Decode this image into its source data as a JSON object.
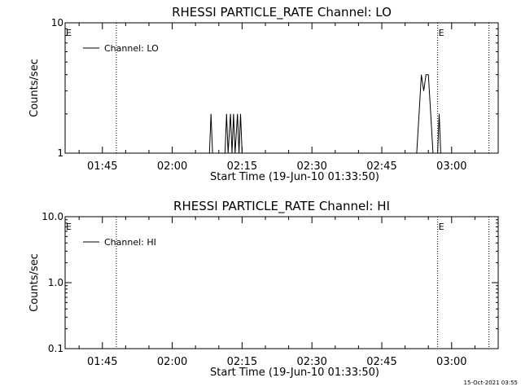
{
  "footer": {
    "timestamp": "15-Oct-2021 03:55"
  },
  "chart_data": [
    {
      "type": "line",
      "title": "RHESSI PARTICLE_RATE Channel: LO",
      "xlabel": "Start Time (19-Jun-10 01:33:50)",
      "ylabel": "Counts/sec",
      "yscale": "log",
      "ylim": [
        1,
        10
      ],
      "yticks": [
        1,
        10
      ],
      "ytick_labels": [
        "1",
        "10"
      ],
      "xlim": [
        "01:37",
        "03:10"
      ],
      "xticks": [
        "01:45",
        "02:00",
        "02:15",
        "02:30",
        "02:45",
        "03:00"
      ],
      "grid": false,
      "legend_position": "top-left",
      "legend_label": "Channel: LO",
      "markers": [
        {
          "time": "01:37",
          "label": "E"
        },
        {
          "time": "01:48"
        },
        {
          "time": "02:57",
          "label": "E"
        },
        {
          "time": "03:08"
        }
      ],
      "series": [
        {
          "name": "Channel: LO",
          "points": [
            [
              "02:08:00",
              1
            ],
            [
              "02:08:20",
              2
            ],
            [
              "02:08:40",
              1
            ],
            [
              "02:11:20",
              1
            ],
            [
              "02:11:40",
              2
            ],
            [
              "02:12:00",
              1
            ],
            [
              "02:12:30",
              2
            ],
            [
              "02:12:50",
              1
            ],
            [
              "02:13:10",
              2
            ],
            [
              "02:13:30",
              1
            ],
            [
              "02:14:00",
              2
            ],
            [
              "02:14:20",
              1
            ],
            [
              "02:14:40",
              2
            ],
            [
              "02:15:00",
              1
            ],
            [
              "02:52:30",
              1
            ],
            [
              "02:53:00",
              2
            ],
            [
              "02:53:30",
              4
            ],
            [
              "02:54:00",
              3
            ],
            [
              "02:54:30",
              4
            ],
            [
              "02:55:00",
              4
            ],
            [
              "02:55:30",
              2
            ],
            [
              "02:56:00",
              1
            ],
            [
              "02:57:00",
              1
            ],
            [
              "02:57:20",
              2
            ],
            [
              "02:57:40",
              1
            ]
          ]
        }
      ]
    },
    {
      "type": "line",
      "title": "RHESSI PARTICLE_RATE Channel: HI",
      "xlabel": "Start Time (19-Jun-10 01:33:50)",
      "ylabel": "Counts/sec",
      "yscale": "log",
      "ylim": [
        0.1,
        10
      ],
      "yticks": [
        0.1,
        1,
        10
      ],
      "ytick_labels": [
        "0.1",
        "1.0",
        "10.0"
      ],
      "xlim": [
        "01:37",
        "03:10"
      ],
      "xticks": [
        "01:45",
        "02:00",
        "02:15",
        "02:30",
        "02:45",
        "03:00"
      ],
      "grid": false,
      "legend_position": "top-left",
      "legend_label": "Channel: HI",
      "markers": [
        {
          "time": "01:37",
          "label": "E"
        },
        {
          "time": "01:48"
        },
        {
          "time": "02:57",
          "label": "E"
        },
        {
          "time": "03:08"
        }
      ],
      "series": [
        {
          "name": "Channel: HI",
          "points": []
        }
      ]
    }
  ]
}
